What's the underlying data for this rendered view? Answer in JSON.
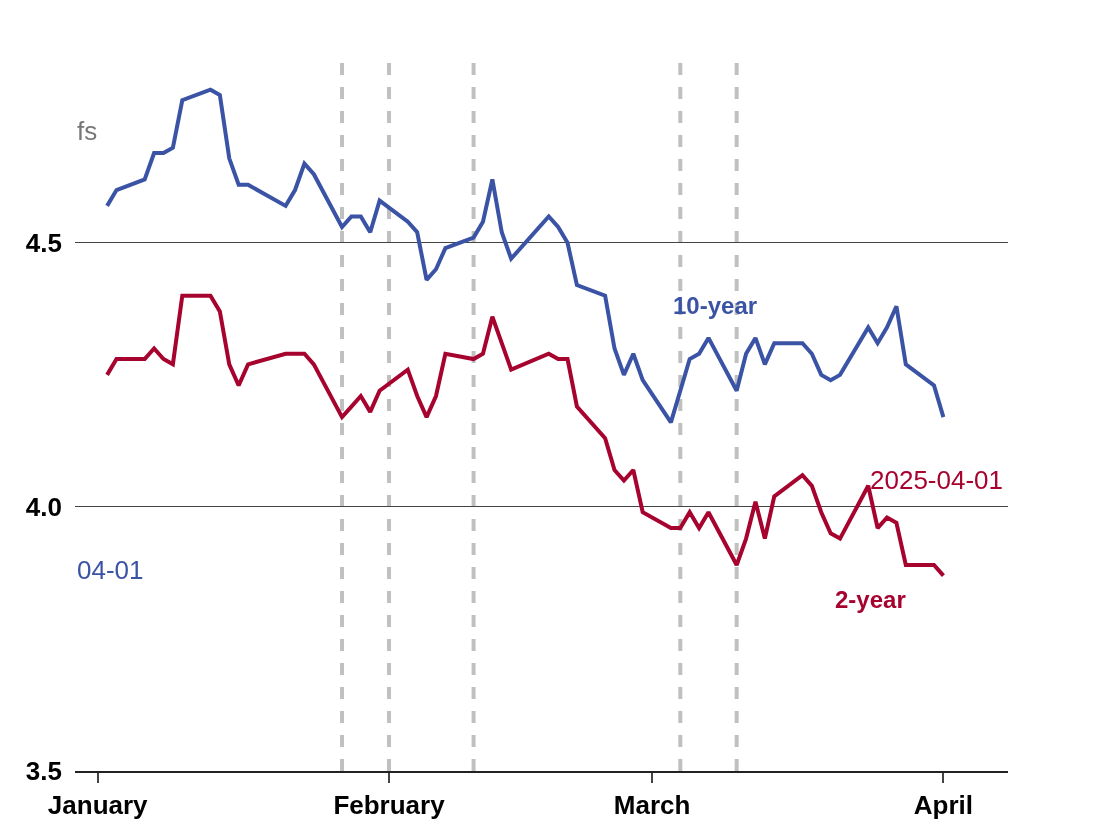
{
  "chart_data": {
    "type": "line",
    "x": [
      "2025-01-02",
      "2025-01-03",
      "2025-01-06",
      "2025-01-07",
      "2025-01-08",
      "2025-01-09",
      "2025-01-10",
      "2025-01-13",
      "2025-01-14",
      "2025-01-15",
      "2025-01-16",
      "2025-01-17",
      "2025-01-21",
      "2025-01-22",
      "2025-01-23",
      "2025-01-24",
      "2025-01-27",
      "2025-01-28",
      "2025-01-29",
      "2025-01-30",
      "2025-01-31",
      "2025-02-03",
      "2025-02-04",
      "2025-02-05",
      "2025-02-06",
      "2025-02-07",
      "2025-02-10",
      "2025-02-11",
      "2025-02-12",
      "2025-02-13",
      "2025-02-14",
      "2025-02-18",
      "2025-02-19",
      "2025-02-20",
      "2025-02-21",
      "2025-02-24",
      "2025-02-25",
      "2025-02-26",
      "2025-02-27",
      "2025-02-28",
      "2025-03-03",
      "2025-03-04",
      "2025-03-05",
      "2025-03-06",
      "2025-03-07",
      "2025-03-10",
      "2025-03-11",
      "2025-03-12",
      "2025-03-13",
      "2025-03-14",
      "2025-03-17",
      "2025-03-18",
      "2025-03-19",
      "2025-03-20",
      "2025-03-21",
      "2025-03-24",
      "2025-03-25",
      "2025-03-26",
      "2025-03-27",
      "2025-03-28",
      "2025-03-31",
      "2025-04-01"
    ],
    "series": [
      {
        "name": "10-year",
        "color": "#3a53a4",
        "values": [
          4.57,
          4.6,
          4.62,
          4.67,
          4.67,
          4.68,
          4.77,
          4.79,
          4.78,
          4.66,
          4.61,
          4.61,
          4.57,
          4.6,
          4.65,
          4.63,
          4.53,
          4.55,
          4.55,
          4.52,
          4.58,
          4.54,
          4.52,
          4.43,
          4.45,
          4.49,
          4.51,
          4.54,
          4.62,
          4.52,
          4.47,
          4.55,
          4.53,
          4.5,
          4.42,
          4.4,
          4.3,
          4.25,
          4.29,
          4.24,
          4.16,
          4.22,
          4.28,
          4.29,
          4.32,
          4.22,
          4.29,
          4.32,
          4.27,
          4.31,
          4.31,
          4.29,
          4.25,
          4.24,
          4.25,
          4.34,
          4.31,
          4.34,
          4.38,
          4.27,
          4.23,
          4.17
        ]
      },
      {
        "name": "2-year",
        "color": "#a6032f",
        "values": [
          4.25,
          4.28,
          4.28,
          4.3,
          4.28,
          4.27,
          4.4,
          4.4,
          4.37,
          4.27,
          4.23,
          4.27,
          4.29,
          4.29,
          4.29,
          4.27,
          4.17,
          4.19,
          4.21,
          4.18,
          4.22,
          4.26,
          4.21,
          4.17,
          4.21,
          4.29,
          4.28,
          4.29,
          4.36,
          4.31,
          4.26,
          4.29,
          4.28,
          4.28,
          4.19,
          4.13,
          4.07,
          4.05,
          4.07,
          3.99,
          3.96,
          3.96,
          3.99,
          3.96,
          3.99,
          3.89,
          3.94,
          4.01,
          3.94,
          4.02,
          4.06,
          4.04,
          3.99,
          3.95,
          3.94,
          4.04,
          3.96,
          3.98,
          3.97,
          3.89,
          3.89,
          3.87
        ]
      }
    ],
    "xlim": [
      "2024-12-29T14:00",
      "2025-04-07T21:00"
    ],
    "xticks": [
      {
        "value": "2025-01-01",
        "label": "January"
      },
      {
        "value": "2025-02-01",
        "label": "February"
      },
      {
        "value": "2025-03-01",
        "label": "March"
      },
      {
        "value": "2025-04-01",
        "label": "April"
      }
    ],
    "ylim": [
      3.5,
      4.85
    ],
    "yticks": [
      3.5,
      {
        "value": 4.0,
        "label": "4.0"
      },
      4.5
    ],
    "grid": "y",
    "legend": false,
    "line_style": "solid",
    "marker": "none",
    "ref_lines": [
      {
        "axis": "x",
        "value": "2025-01-27",
        "color": "#c0c0c0",
        "line_style": "dashed"
      },
      {
        "axis": "x",
        "value": "2025-02-01",
        "color": "#c0c0c0",
        "line_style": "dashed"
      },
      {
        "axis": "x",
        "value": "2025-02-10",
        "color": "#c0c0c0",
        "line_style": "dashed"
      },
      {
        "axis": "x",
        "value": "2025-03-04",
        "color": "#c0c0c0",
        "line_style": "dashed"
      },
      {
        "axis": "x",
        "value": "2025-03-10",
        "color": "#c0c0c0",
        "line_style": "dashed"
      }
    ],
    "annotations": [
      "fs",
      "04-01",
      "2025-04-01"
    ]
  }
}
